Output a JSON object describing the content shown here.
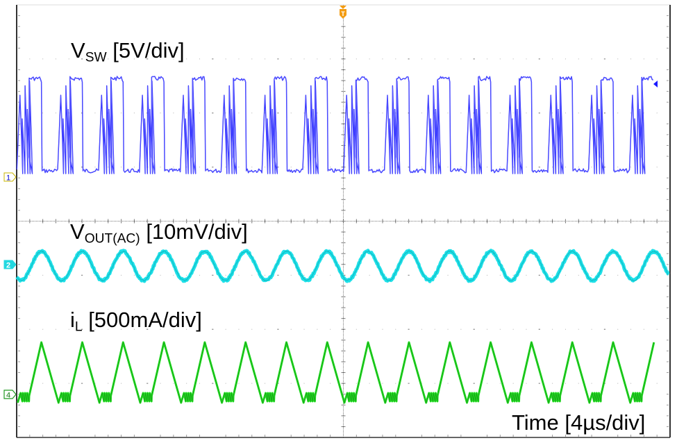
{
  "chart_data": {
    "type": "line",
    "title": "",
    "xlabel": "Time [4µs/div]",
    "ylabel": "",
    "grid": true,
    "divisions": {
      "horizontal": 10,
      "vertical": 8
    },
    "time_per_div_us": 4,
    "x_range_us": [
      0,
      40
    ],
    "switching_period_us": 2.48,
    "switching_frequency_mhz": 0.403,
    "cycles_visible": 16,
    "trigger_marker": {
      "label": "T",
      "position_div": 5,
      "color": "#f39c12"
    },
    "series": [
      {
        "name": "VSW",
        "label_main": "V",
        "label_sub": "SW",
        "label_scale": "[5V/div]",
        "channel": "1",
        "color": "#0000ff",
        "scale": "5V/div",
        "shape": "square wave with ringing",
        "low_level_div": 0.15,
        "high_level_div": 1.85,
        "approx_amplitude_v": 8.5
      },
      {
        "name": "VOUT(AC)",
        "label_main": "V",
        "label_sub": "OUT(AC)",
        "label_scale": "[10mV/div]",
        "channel": "2",
        "color": "#00e5ee",
        "scale": "10mV/div",
        "shape": "sinusoidal ripple",
        "peak_to_peak_div": 0.55,
        "approx_ripple_mv_pp": 5.5
      },
      {
        "name": "iL",
        "label_main": "i",
        "label_sub": "L",
        "label_scale": "[500mA/div]",
        "channel": "4",
        "color": "#00dd00",
        "scale": "500mA/div",
        "shape": "triangle wave",
        "peak_to_peak_div": 1.0,
        "approx_ripple_ma_pp": 500
      }
    ]
  },
  "labels": {
    "vsw_main": "V",
    "vsw_sub": "SW",
    "vsw_scale": " [5V/div]",
    "vout_main": "V",
    "vout_sub": "OUT(AC)",
    "vout_scale": " [10mV/div]",
    "il_main": "i",
    "il_sub": "L",
    "il_scale": " [500mA/div]",
    "time": "Time  [4µs/div]"
  },
  "markers": {
    "ch1": "1",
    "ch2": "2",
    "ch4": "4",
    "trigger": "T"
  }
}
